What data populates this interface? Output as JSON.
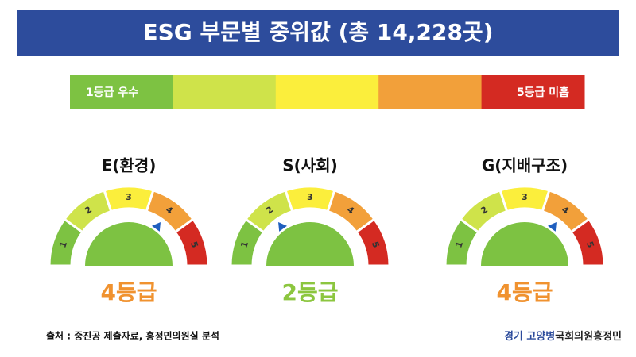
{
  "title": "ESG 부문별 중위값 (총 14,228곳)",
  "scale": {
    "best_label": "1등급 우수",
    "worst_label": "5등급 미흡",
    "colors": [
      "#7dc242",
      "#cfe34a",
      "#fbee3c",
      "#f2a03a",
      "#d42a22"
    ]
  },
  "segment_labels": [
    "1",
    "2",
    "3",
    "4",
    "5"
  ],
  "gauges": [
    {
      "label": "E(환경)",
      "grade": 4,
      "grade_label": "4등급",
      "color": "#f0922f"
    },
    {
      "label": "S(사회)",
      "grade": 2,
      "grade_label": "2등급",
      "color": "#8cc63f"
    },
    {
      "label": "G(지배구조)",
      "grade": 4,
      "grade_label": "4등급",
      "color": "#f0922f"
    }
  ],
  "source": "출처 : 중진공 제출자료, 홍정민의원실 분석",
  "credit_district": "경기 고양병",
  "credit_name": "국회의원홍정민"
}
